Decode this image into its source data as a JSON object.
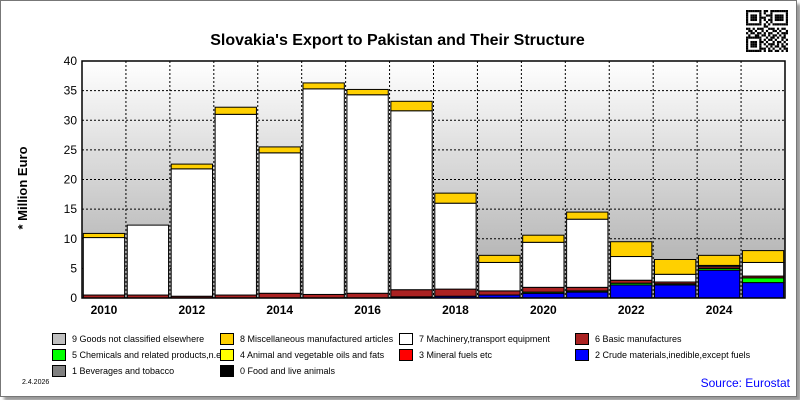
{
  "chart_data": {
    "type": "bar",
    "stacked": true,
    "title": "Slovakia's Export to Pakistan and Their Structure",
    "ylabel": "* Million Euro",
    "ylim": [
      0,
      40
    ],
    "yticks": [
      0,
      5,
      10,
      15,
      20,
      25,
      30,
      35,
      40
    ],
    "years": [
      2010,
      2011,
      2012,
      2013,
      2014,
      2015,
      2016,
      2017,
      2018,
      2019,
      2020,
      2021,
      2022,
      2023,
      2024,
      2025
    ],
    "xtick_labels": [
      "2010",
      "",
      "2012",
      "",
      "2014",
      "",
      "2016",
      "",
      "2018",
      "",
      "2020",
      "",
      "2022",
      "",
      "2024",
      ""
    ],
    "grid": true,
    "background_gradient": [
      "#ffffff",
      "#a8a8a8"
    ],
    "legend_position": "bottom",
    "series": [
      {
        "code": "0",
        "name": "0 Food and live animals",
        "color": "#000000",
        "values": [
          0,
          0,
          0,
          0,
          0,
          0,
          0,
          0,
          0,
          0,
          0,
          0,
          0,
          0,
          0,
          0
        ]
      },
      {
        "code": "1",
        "name": "1 Beverages and tobacco",
        "color": "#808080",
        "values": [
          0,
          0,
          0,
          0,
          0,
          0,
          0,
          0,
          0,
          0,
          0,
          0,
          0,
          0,
          0,
          0
        ]
      },
      {
        "code": "2",
        "name": "2 Crude materials,inedible,except fuels",
        "color": "#0000ff",
        "values": [
          0,
          0,
          0,
          0,
          0,
          0,
          0,
          0.2,
          0.3,
          0.5,
          0.8,
          1.0,
          2.2,
          2.2,
          4.7,
          2.6
        ]
      },
      {
        "code": "3",
        "name": "3 Mineral fuels etc",
        "color": "#ff0000",
        "values": [
          0,
          0,
          0,
          0,
          0,
          0,
          0,
          0,
          0,
          0,
          0,
          0,
          0,
          0,
          0,
          0
        ]
      },
      {
        "code": "4",
        "name": "4 Animal and vegetable oils and fats",
        "color": "#ffff00",
        "values": [
          0,
          0,
          0,
          0,
          0,
          0,
          0,
          0,
          0,
          0,
          0,
          0,
          0,
          0,
          0,
          0
        ]
      },
      {
        "code": "5",
        "name": "5 Chemicals and related products,n.e.s.",
        "color": "#00ff00",
        "values": [
          0,
          0,
          0,
          0,
          0,
          0,
          0,
          0,
          0,
          0,
          0.2,
          0.2,
          0.3,
          0.2,
          0.3,
          0.8
        ]
      },
      {
        "code": "6",
        "name": "6 Basic manufactures",
        "color": "#aa2222",
        "values": [
          0.5,
          0.5,
          0.3,
          0.5,
          0.8,
          0.6,
          0.8,
          1.2,
          1.2,
          0.7,
          0.8,
          0.6,
          0.5,
          0.3,
          0.3,
          0.3
        ]
      },
      {
        "code": "7",
        "name": "7 Machinery,transport equipment",
        "color": "#ffffff",
        "values": [
          9.7,
          11.8,
          21.5,
          30.5,
          23.7,
          34.7,
          33.5,
          30.2,
          14.5,
          4.8,
          7.6,
          11.5,
          4.0,
          1.3,
          0.2,
          2.3
        ]
      },
      {
        "code": "8",
        "name": "8 Miscellaneous manufactured articles",
        "color": "#ffd000",
        "values": [
          0.7,
          0,
          0.8,
          1.2,
          1.0,
          1.0,
          0.9,
          1.6,
          1.7,
          1.2,
          1.2,
          1.2,
          2.5,
          2.5,
          1.7,
          2.0
        ]
      },
      {
        "code": "9",
        "name": "9 Goods not classified elsewhere",
        "color": "#c0c0c0",
        "values": [
          0,
          0,
          0,
          0,
          0,
          0,
          0,
          0,
          0,
          0,
          0,
          0,
          0,
          0,
          0,
          0
        ]
      }
    ],
    "legend_order": [
      "9",
      "8",
      "7",
      "6",
      "5",
      "4",
      "3",
      "2",
      "1",
      "0"
    ]
  },
  "footer": {
    "date": "2.4.2026",
    "source": "Source: Eurostat"
  },
  "icons": {
    "qr": "qr-code-icon"
  }
}
